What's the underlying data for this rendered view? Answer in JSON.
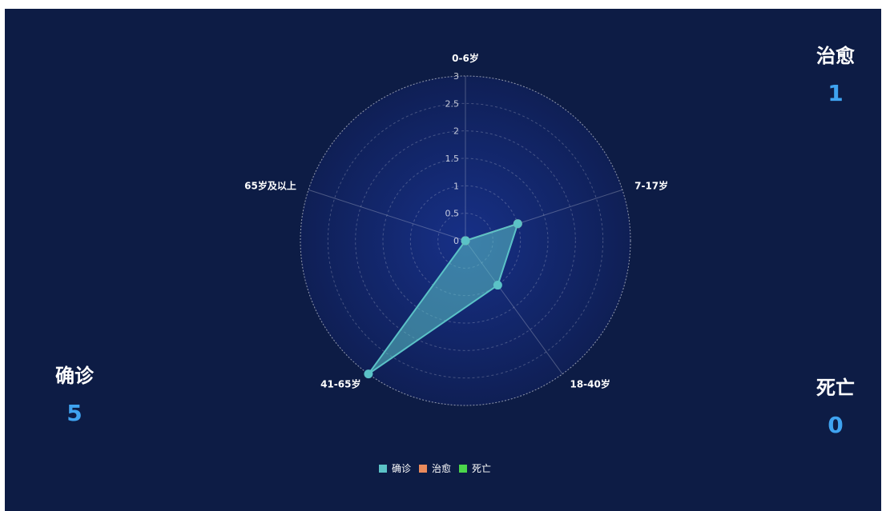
{
  "stats": {
    "cured": {
      "label": "治愈",
      "value": "1"
    },
    "confirmed": {
      "label": "确诊",
      "value": "5"
    },
    "dead": {
      "label": "死亡",
      "value": "0"
    }
  },
  "colors": {
    "confirmed": "#5bc2c7",
    "cured": "#ea8a5c",
    "dead": "#4bd64b"
  },
  "chart_data": {
    "type": "radar",
    "indicators": [
      "0-6岁",
      "7-17岁",
      "18-40岁",
      "41-65岁",
      "65岁及以上"
    ],
    "rmax": 3,
    "ticks": [
      "0",
      "0.5",
      "1",
      "1.5",
      "2",
      "2.5",
      "3"
    ],
    "series": [
      {
        "name": "确诊",
        "values": [
          0,
          1,
          1,
          3,
          0
        ]
      },
      {
        "name": "治愈",
        "values": [
          0,
          1,
          0,
          0,
          0
        ]
      },
      {
        "name": "死亡",
        "values": [
          0,
          0,
          0,
          0,
          0
        ]
      }
    ],
    "legend_position": "bottom-center"
  }
}
